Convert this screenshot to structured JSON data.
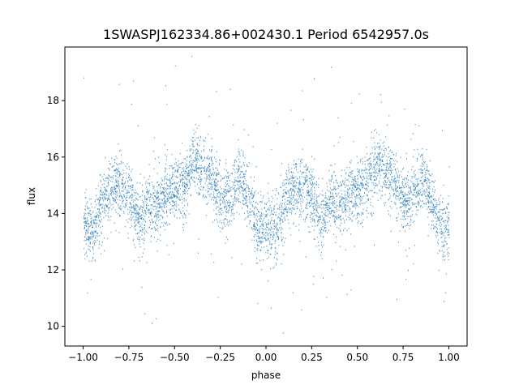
{
  "chart_data": {
    "type": "scatter",
    "title": "1SWASPJ162334.86+002430.1 Period 6542957.0s",
    "xlabel": "phase",
    "ylabel": "flux",
    "xlim": [
      -1.1,
      1.1
    ],
    "ylim": [
      9.3,
      19.9
    ],
    "xticks": [
      -1.0,
      -0.75,
      -0.5,
      -0.25,
      0.0,
      0.25,
      0.5,
      0.75,
      1.0
    ],
    "xtick_labels": [
      "−1.00",
      "−0.75",
      "−0.50",
      "−0.25",
      "0.00",
      "0.25",
      "0.50",
      "0.75",
      "1.00"
    ],
    "yticks": [
      10,
      12,
      14,
      16,
      18
    ],
    "ytick_labels": [
      "10",
      "12",
      "14",
      "16",
      "18"
    ],
    "grid": false,
    "legend": "none",
    "series": [
      {
        "color": "#1f77b4",
        "phase_range": [
          -1.0,
          1.0
        ],
        "approx_trend": {
          "phase": [
            0.0,
            0.05,
            0.1,
            0.15,
            0.2,
            0.25,
            0.3,
            0.35,
            0.4,
            0.45,
            0.5,
            0.55,
            0.6,
            0.65,
            0.7,
            0.75,
            0.8,
            0.85,
            0.9,
            0.95,
            1.0
          ],
          "flux": [
            13.6,
            13.4,
            14.4,
            14.9,
            15.0,
            14.7,
            13.7,
            14.4,
            14.3,
            14.6,
            14.9,
            15.0,
            15.8,
            15.6,
            15.3,
            14.4,
            14.6,
            15.3,
            14.6,
            13.4,
            13.5
          ]
        }
      }
    ]
  }
}
